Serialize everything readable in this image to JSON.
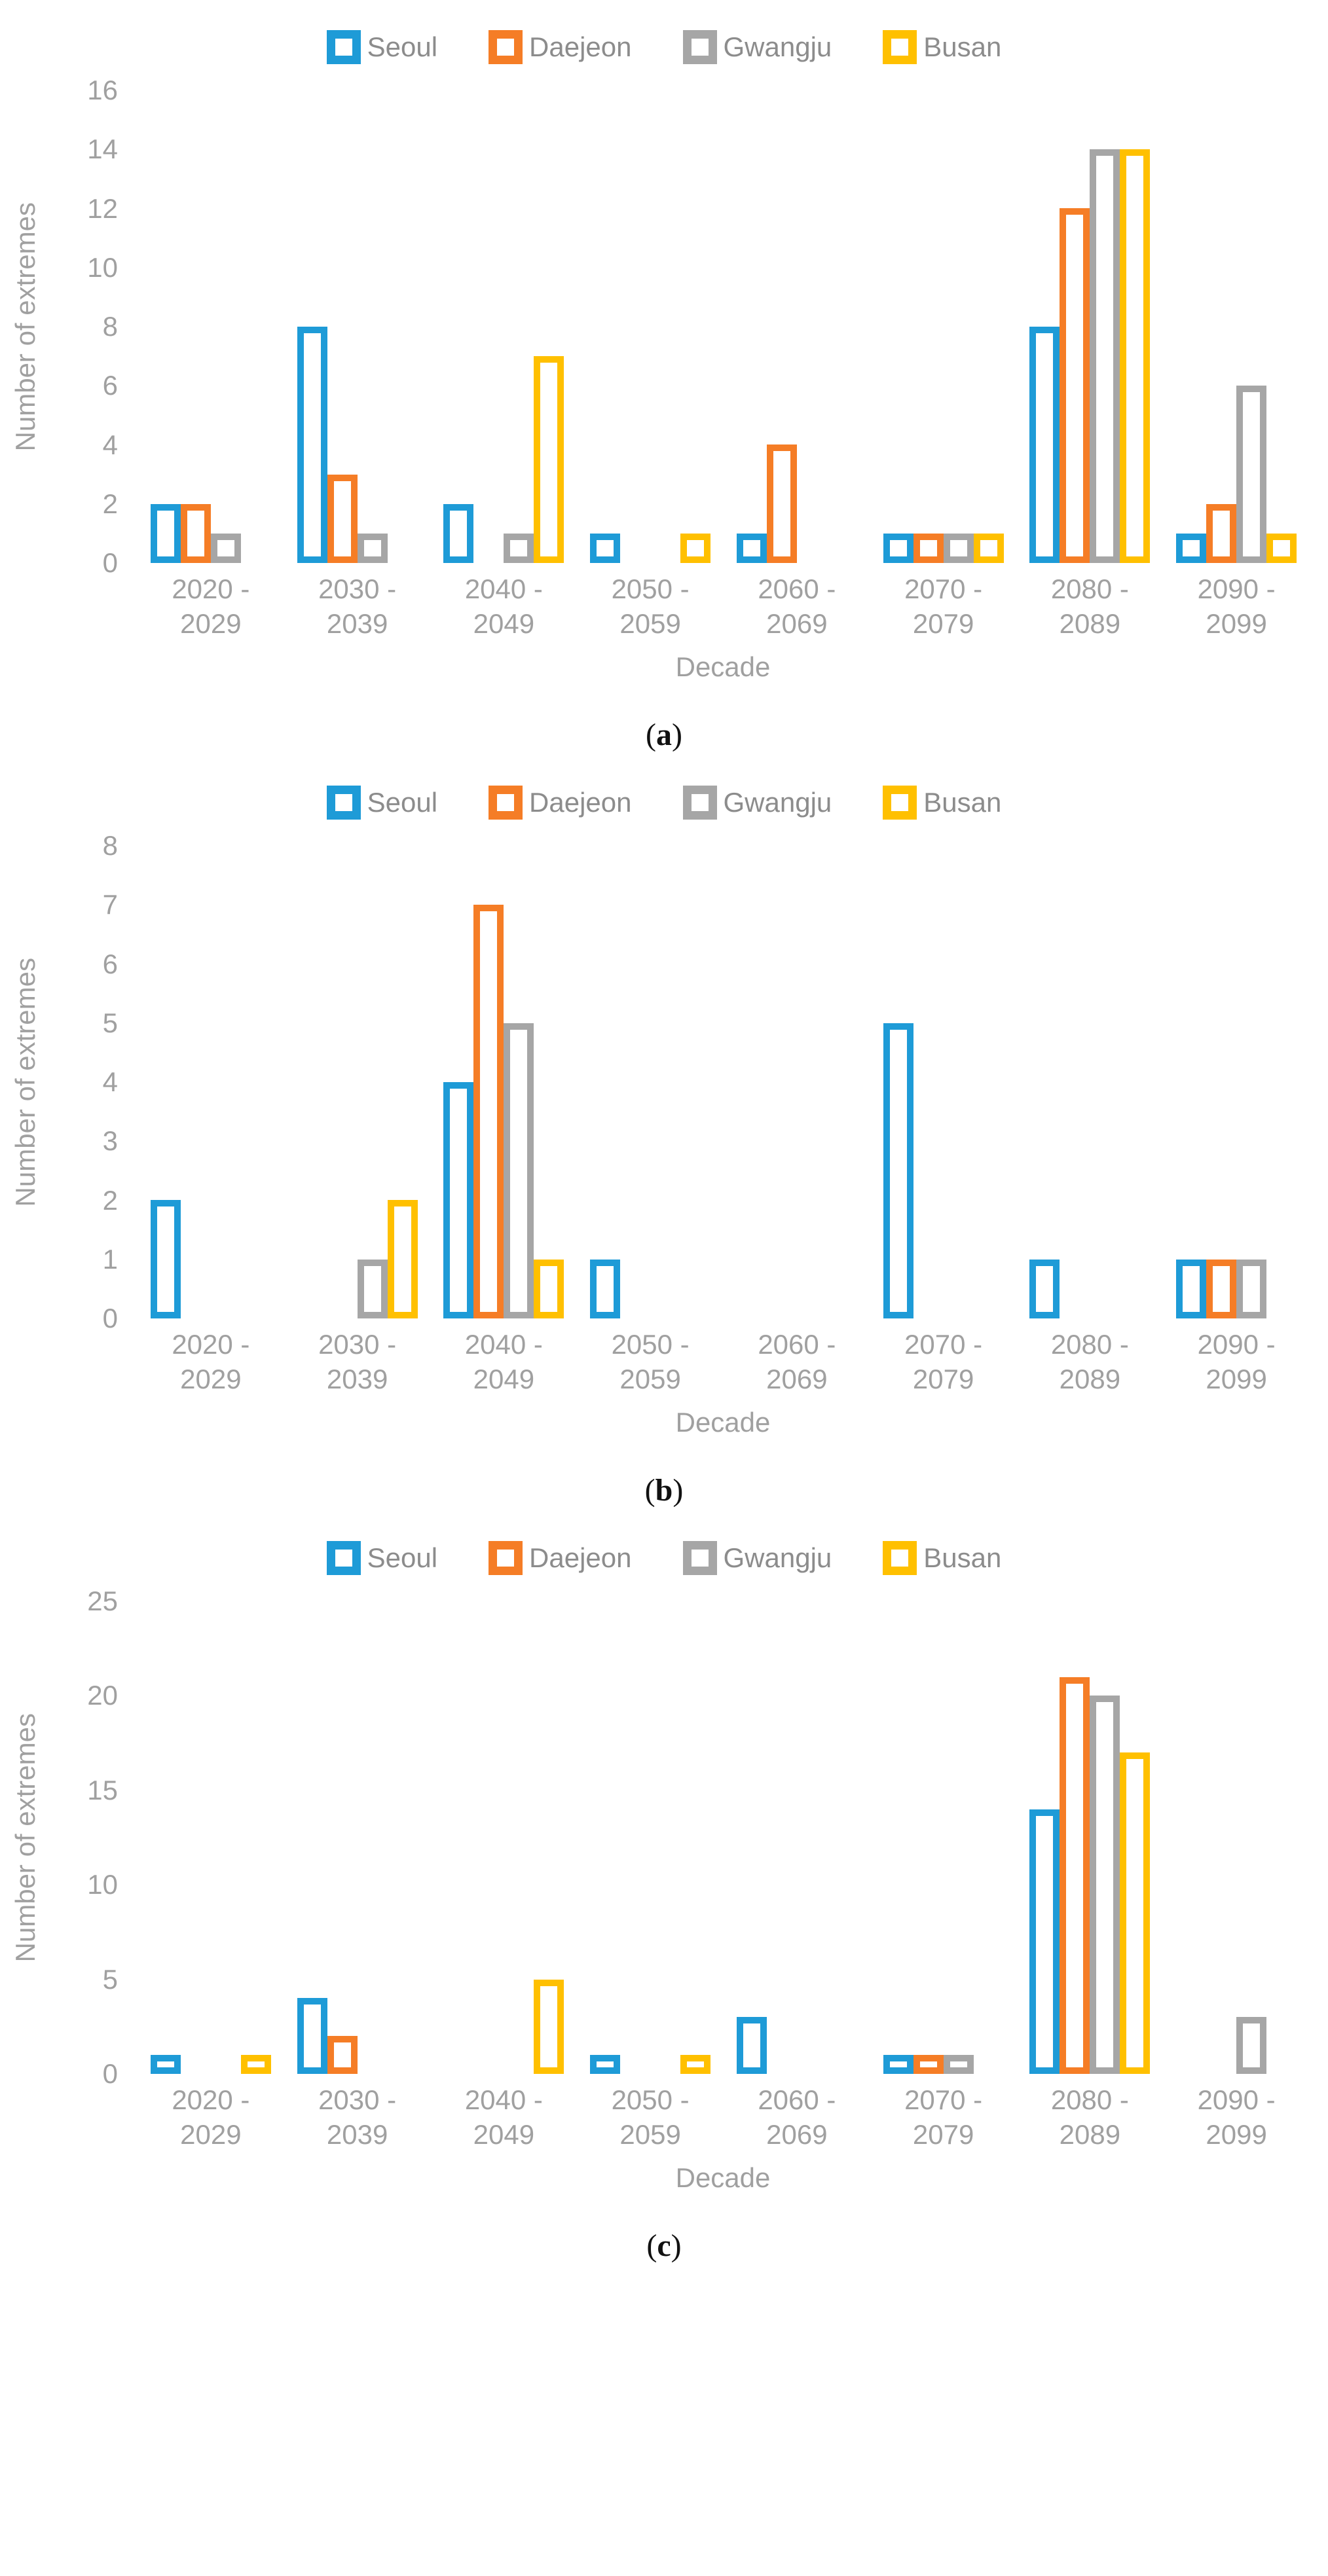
{
  "figure": {
    "ylabel": "Number of extremes",
    "xlabel": "Decade",
    "legend": [
      "Seoul",
      "Daejeon",
      "Gwangju",
      "Busan"
    ],
    "colors": {
      "seoul": "#1E9BD7",
      "daejeon": "#F57D26",
      "gwangju": "#A6A6A6",
      "busan": "#FFC000",
      "axis_text": "#A0A0A0",
      "legend_text": "#8C8C8C"
    }
  },
  "chart_data": [
    {
      "type": "bar",
      "caption": "(a)",
      "caption_letter": "a",
      "ylabel": "Number of extremes",
      "xlabel": "Decade",
      "ylim": [
        0,
        16
      ],
      "yticks": [
        0,
        2,
        4,
        6,
        8,
        10,
        12,
        14,
        16
      ],
      "grid": false,
      "legend_position": "top",
      "categories": [
        "2020 - 2029",
        "2030 - 2039",
        "2040 - 2049",
        "2050 - 2059",
        "2060 - 2069",
        "2070 - 2079",
        "2080 - 2089",
        "2090 - 2099"
      ],
      "series": [
        {
          "name": "Seoul",
          "color": "#1E9BD7",
          "values": [
            2,
            8,
            2,
            1,
            1,
            1,
            8,
            1
          ]
        },
        {
          "name": "Daejeon",
          "color": "#F57D26",
          "values": [
            2,
            3,
            0,
            0,
            4,
            1,
            12,
            2
          ]
        },
        {
          "name": "Gwangju",
          "color": "#A6A6A6",
          "values": [
            1,
            1,
            1,
            0,
            0,
            1,
            14,
            6
          ]
        },
        {
          "name": "Busan",
          "color": "#FFC000",
          "values": [
            0,
            0,
            7,
            1,
            0,
            1,
            14,
            1
          ]
        }
      ]
    },
    {
      "type": "bar",
      "caption": "(b)",
      "caption_letter": "b",
      "ylabel": "Number of extremes",
      "xlabel": "Decade",
      "ylim": [
        0,
        8
      ],
      "yticks": [
        0,
        1,
        2,
        3,
        4,
        5,
        6,
        7,
        8
      ],
      "grid": false,
      "legend_position": "top",
      "categories": [
        "2020 - 2029",
        "2030 - 2039",
        "2040 - 2049",
        "2050 - 2059",
        "2060 - 2069",
        "2070 - 2079",
        "2080 - 2089",
        "2090 - 2099"
      ],
      "series": [
        {
          "name": "Seoul",
          "color": "#1E9BD7",
          "values": [
            2,
            0,
            4,
            1,
            0,
            5,
            1,
            1
          ]
        },
        {
          "name": "Daejeon",
          "color": "#F57D26",
          "values": [
            0,
            0,
            7,
            0,
            0,
            0,
            0,
            1
          ]
        },
        {
          "name": "Gwangju",
          "color": "#A6A6A6",
          "values": [
            0,
            1,
            5,
            0,
            0,
            0,
            0,
            1
          ]
        },
        {
          "name": "Busan",
          "color": "#FFC000",
          "values": [
            0,
            2,
            1,
            0,
            0,
            0,
            0,
            0
          ]
        }
      ]
    },
    {
      "type": "bar",
      "caption": "(c)",
      "caption_letter": "c",
      "ylabel": "Number of extremes",
      "xlabel": "Decade",
      "ylim": [
        0,
        25
      ],
      "yticks": [
        0,
        5,
        10,
        15,
        20,
        25
      ],
      "grid": false,
      "legend_position": "top",
      "categories": [
        "2020 - 2029",
        "2030 - 2039",
        "2040 - 2049",
        "2050 - 2059",
        "2060 - 2069",
        "2070 - 2079",
        "2080 - 2089",
        "2090 - 2099"
      ],
      "series": [
        {
          "name": "Seoul",
          "color": "#1E9BD7",
          "values": [
            1,
            4,
            0,
            1,
            3,
            1,
            14,
            0
          ]
        },
        {
          "name": "Daejeon",
          "color": "#F57D26",
          "values": [
            0,
            2,
            0,
            0,
            0,
            1,
            21,
            0
          ]
        },
        {
          "name": "Gwangju",
          "color": "#A6A6A6",
          "values": [
            0,
            0,
            0,
            0,
            0,
            1,
            20,
            3
          ]
        },
        {
          "name": "Busan",
          "color": "#FFC000",
          "values": [
            1,
            0,
            5,
            1,
            0,
            0,
            17,
            0
          ]
        }
      ]
    }
  ]
}
